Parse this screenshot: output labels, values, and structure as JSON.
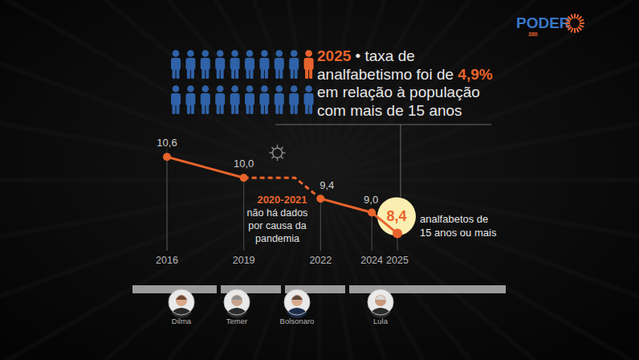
{
  "chart_data": {
    "type": "line",
    "x": [
      2016,
      2019,
      2022,
      2024,
      2025
    ],
    "values": [
      10.6,
      10.0,
      9.4,
      9.0,
      8.4
    ],
    "value_labels": [
      "10,6",
      "10,0",
      "9,4",
      "9,0",
      "8,4"
    ],
    "xlim": [
      2016,
      2025
    ],
    "xticks": [
      2016,
      2019,
      2022,
      2024,
      2025
    ],
    "ylim": [
      7.9,
      11
    ],
    "tick_labels": "x",
    "data_labels": true,
    "grid": true,
    "color": "#e8642c",
    "marker": "circle",
    "line_style": "solid",
    "annotations": [
      {
        "x": [
          2020,
          2021
        ],
        "label": "2020-2021",
        "text_lines": [
          "não há dados",
          "por causa da",
          "pandemia"
        ],
        "line_style": "dashed"
      },
      {
        "x": 2025,
        "text_lines": [
          "analfabetos de",
          "15 anos ou mais"
        ]
      }
    ]
  },
  "headline": {
    "lines": [
      [
        {
          "text": "2025",
          "highlight": true
        },
        {
          "text": " • taxa de",
          "highlight": false
        }
      ],
      [
        {
          "text": "analfabetismo foi de ",
          "highlight": false
        },
        {
          "text": "4,9%",
          "highlight": true
        }
      ],
      [
        {
          "text": "em relação à população",
          "highlight": false
        }
      ],
      [
        {
          "text": "com mais de 15 anos",
          "highlight": false
        }
      ]
    ]
  },
  "pictogram": {
    "total": 20,
    "highlighted": 1
  },
  "timeline": {
    "presidents": [
      "Dilma",
      "Temer",
      "Bolsonaro",
      "Lula"
    ]
  },
  "logo": {
    "text": "PODER",
    "subtext": "360"
  }
}
